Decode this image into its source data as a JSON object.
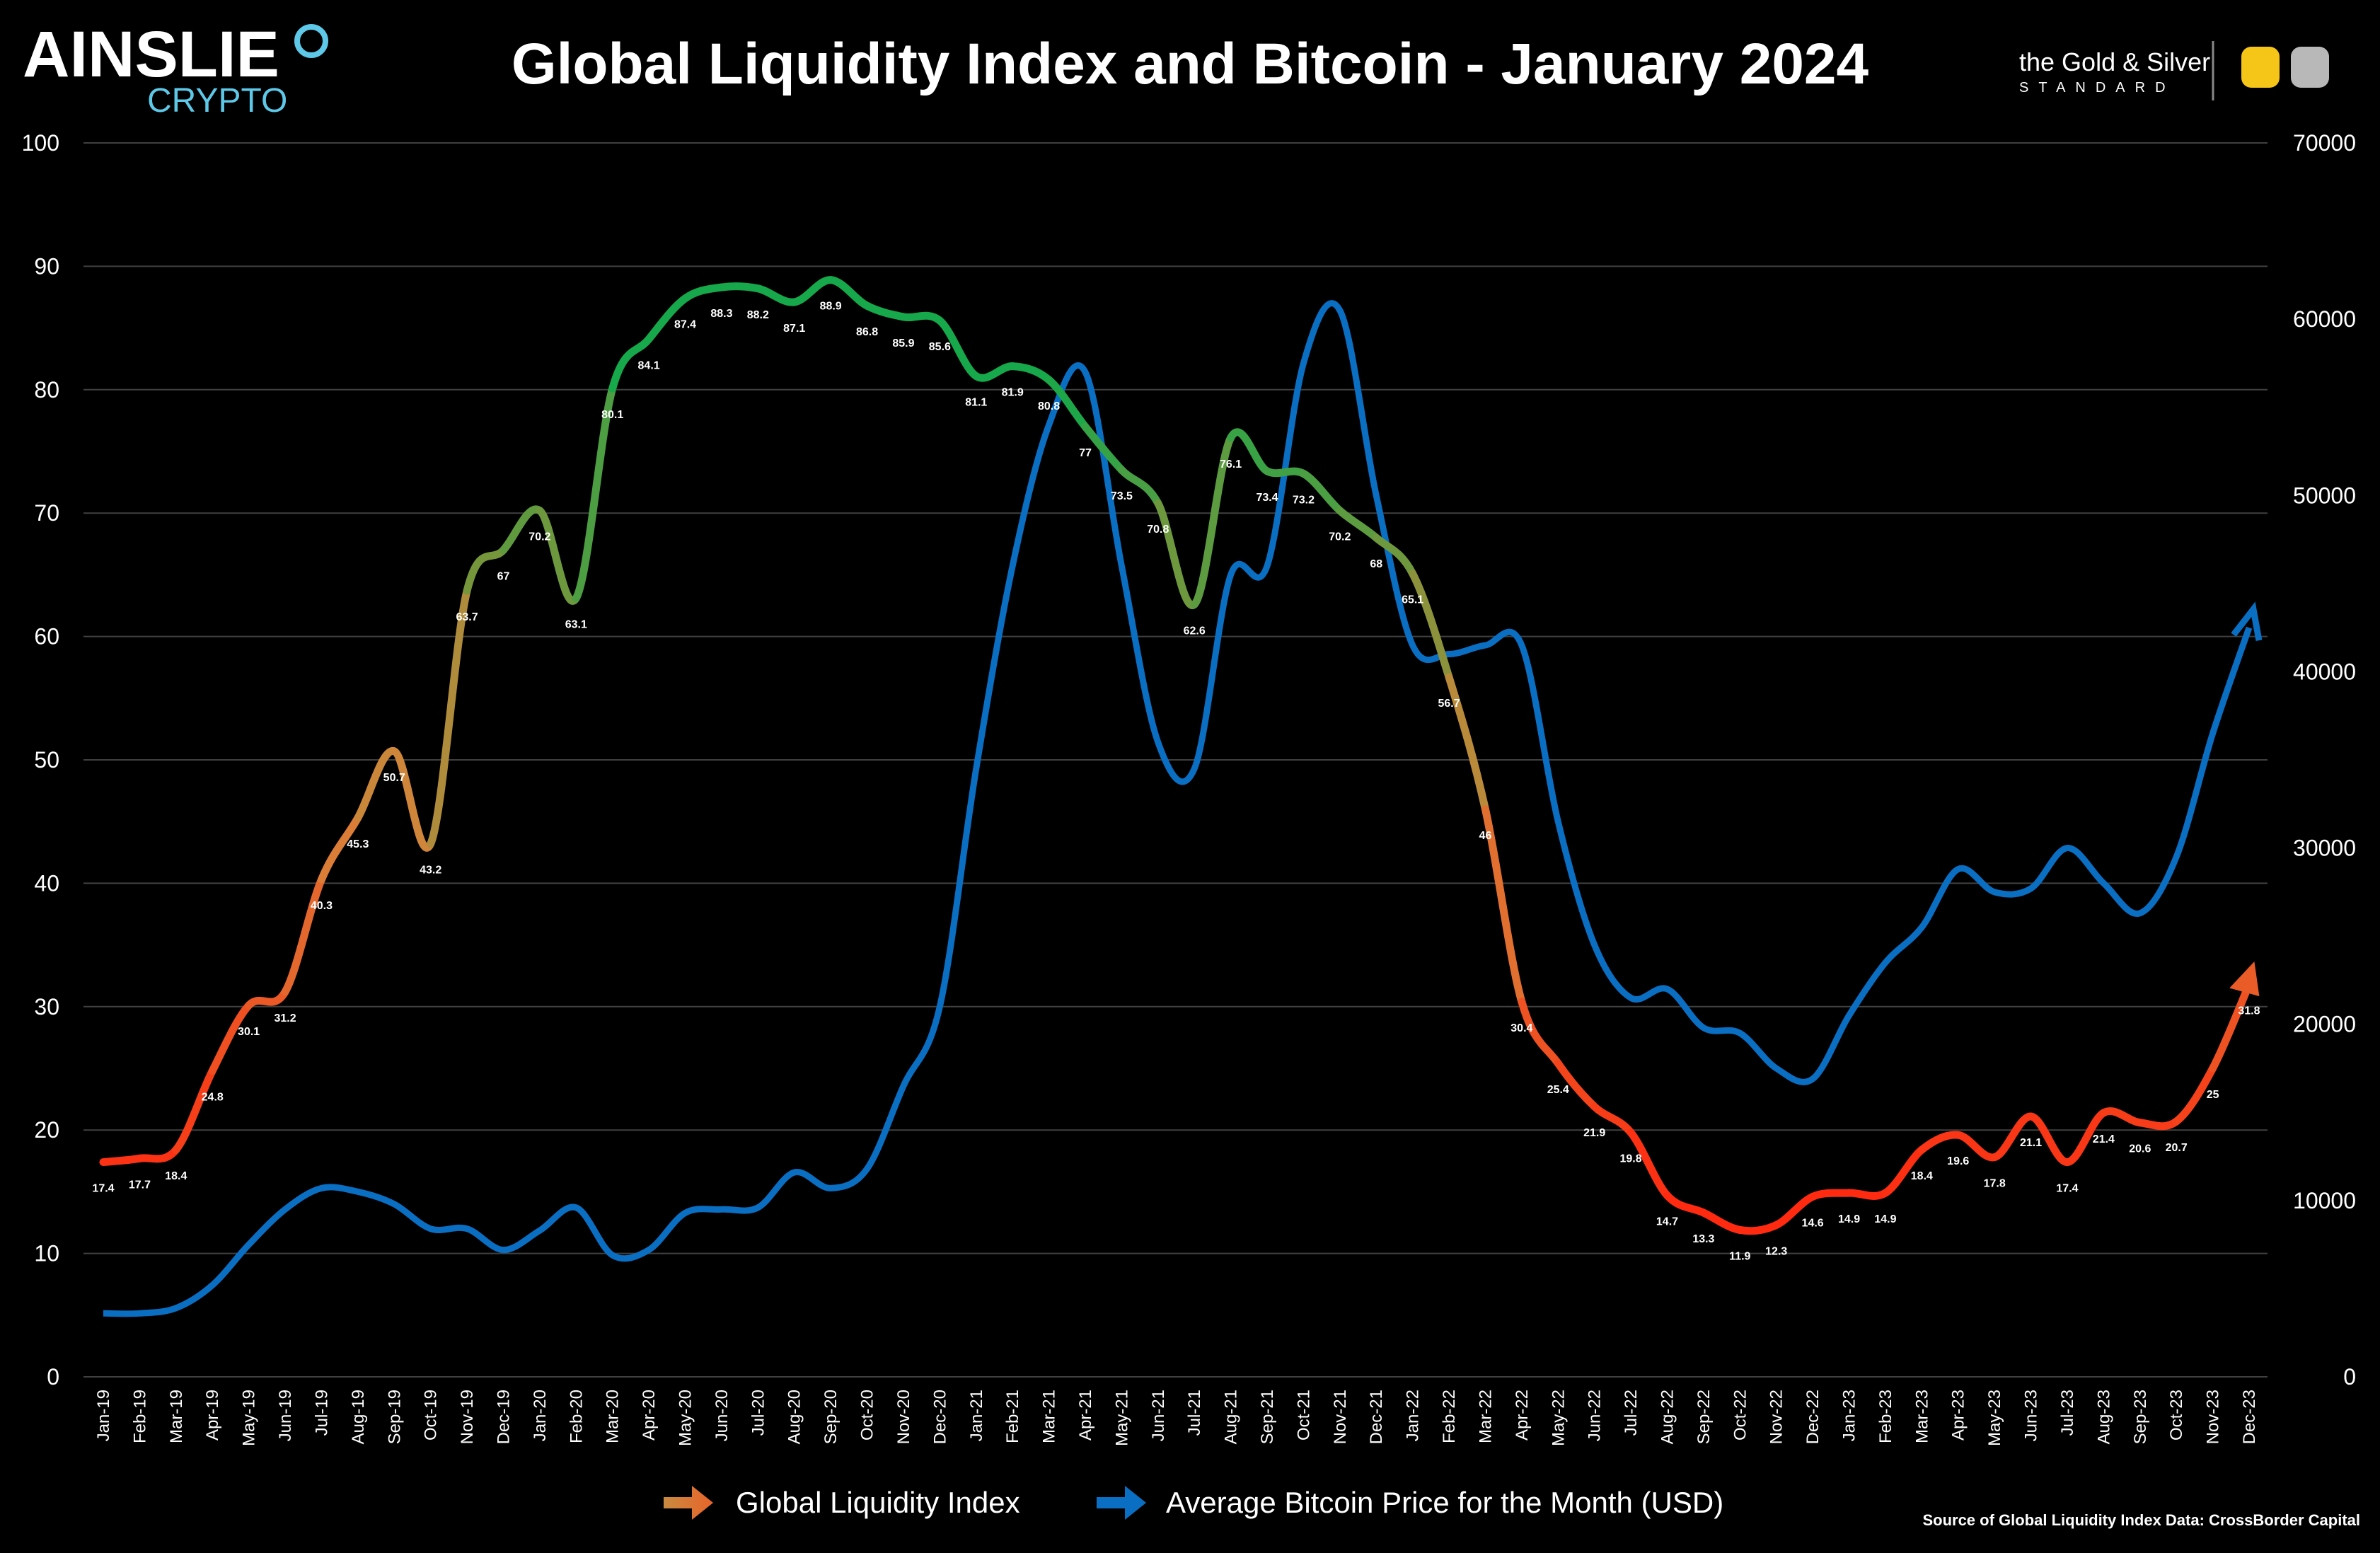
{
  "header": {
    "logo_main": "AINSLIE",
    "logo_sub": "CRYPTO",
    "title": "Global Liquidity Index and Bitcoin - January 2024",
    "partner_logo_top": "the Gold & Silver",
    "partner_logo_bottom": "STANDARD"
  },
  "footer": {
    "source": "Source of Global Liquidity Index Data: CrossBorder Capital"
  },
  "colors": {
    "background": "#000000",
    "bitcoin": "#0a6fc2",
    "gli_low": "#ff2a10",
    "gli_mid": "#d8843a",
    "gli_high": "#16a84a",
    "logo_accent": "#5ec8e8",
    "gridline": "#404040"
  },
  "chart_data": {
    "type": "line",
    "title": "Global Liquidity Index and Bitcoin - January 2024",
    "grid": true,
    "legend_position": "bottom",
    "x": [
      "Jan-19",
      "Feb-19",
      "Mar-19",
      "Apr-19",
      "May-19",
      "Jun-19",
      "Jul-19",
      "Aug-19",
      "Sep-19",
      "Oct-19",
      "Nov-19",
      "Dec-19",
      "Jan-20",
      "Feb-20",
      "Mar-20",
      "Apr-20",
      "May-20",
      "Jun-20",
      "Jul-20",
      "Aug-20",
      "Sep-20",
      "Oct-20",
      "Nov-20",
      "Dec-20",
      "Jan-21",
      "Feb-21",
      "Mar-21",
      "Apr-21",
      "May-21",
      "Jun-21",
      "Jul-21",
      "Aug-21",
      "Sep-21",
      "Oct-21",
      "Nov-21",
      "Dec-21",
      "Jan-22",
      "Feb-22",
      "Mar-22",
      "Apr-22",
      "May-22",
      "Jun-22",
      "Jul-22",
      "Aug-22",
      "Sep-22",
      "Oct-22",
      "Nov-22",
      "Dec-22",
      "Jan-23",
      "Feb-23",
      "Mar-23",
      "Apr-23",
      "May-23",
      "Jun-23",
      "Jul-23",
      "Aug-23",
      "Sep-23",
      "Oct-23",
      "Nov-23",
      "Dec-23"
    ],
    "y_left": {
      "range": [
        0,
        100
      ],
      "ticks": [
        "0",
        "10",
        "20",
        "30",
        "40",
        "50",
        "60",
        "70",
        "80",
        "90",
        "100"
      ]
    },
    "y_right": {
      "range": [
        0,
        70000
      ],
      "ticks": [
        "0",
        "10000",
        "20000",
        "30000",
        "40000",
        "50000",
        "60000",
        "70000"
      ]
    },
    "series": [
      {
        "name": "Global Liquidity Index",
        "axis": "left",
        "values": [
          17.4,
          17.7,
          18.4,
          24.8,
          30.1,
          31.2,
          40.3,
          45.3,
          50.7,
          43.2,
          63.7,
          67,
          70.2,
          63.1,
          80.1,
          84.1,
          87.4,
          88.3,
          88.2,
          87.1,
          88.9,
          86.8,
          85.9,
          85.6,
          81.1,
          81.9,
          80.8,
          77,
          73.5,
          70.8,
          62.6,
          76.1,
          73.4,
          73.2,
          70.2,
          68,
          65.1,
          56.7,
          46,
          30.4,
          25.4,
          21.9,
          19.8,
          14.7,
          13.3,
          11.9,
          12.3,
          14.6,
          14.9,
          14.9,
          18.4,
          19.6,
          17.8,
          21.1,
          17.4,
          21.4,
          20.6,
          20.7,
          25,
          31.8
        ],
        "labels": [
          "17.4",
          "17.7",
          "18.4",
          "24.8",
          "30.1",
          "31.2",
          "40.3",
          "45.3",
          "50.7",
          "43.2",
          "63.7",
          "67",
          "70.2",
          "63.1",
          "80.1",
          "84.1",
          "87.4",
          "88.3",
          "88.2",
          "87.1",
          "88.9",
          "86.8",
          "85.9",
          "85.6",
          "81.1",
          "81.9",
          "80.8",
          "77",
          "73.5",
          "70.8",
          "62.6",
          "76.1",
          "73.4",
          "73.2",
          "70.2",
          "68",
          "65.1",
          "56.7",
          "46",
          "30.4",
          "25.4",
          "21.9",
          "19.8",
          "14.7",
          "13.3",
          "11.9",
          "12.3",
          "14.6",
          "14.9",
          "14.9",
          "18.4",
          "19.6",
          "17.8",
          "21.1",
          "17.4",
          "21.4",
          "20.6",
          "20.7",
          "25",
          "31.8"
        ]
      },
      {
        "name": "Average Bitcoin Price for the Month (USD)",
        "axis": "right",
        "values": [
          3600,
          3600,
          3900,
          5200,
          7500,
          9500,
          10700,
          10500,
          9800,
          8400,
          8400,
          7200,
          8300,
          9600,
          6900,
          7200,
          9300,
          9500,
          9600,
          11600,
          10700,
          11800,
          16500,
          21000,
          34500,
          46000,
          54000,
          57000,
          46000,
          36000,
          34500,
          45500,
          46000,
          57500,
          60500,
          50000,
          41500,
          41000,
          41500,
          41500,
          31500,
          24500,
          21500,
          22000,
          19800,
          19500,
          17500,
          16900,
          20500,
          23500,
          25500,
          28800,
          27500,
          27700,
          30000,
          28000,
          26300,
          29500,
          36500,
          42500
        ]
      }
    ]
  }
}
